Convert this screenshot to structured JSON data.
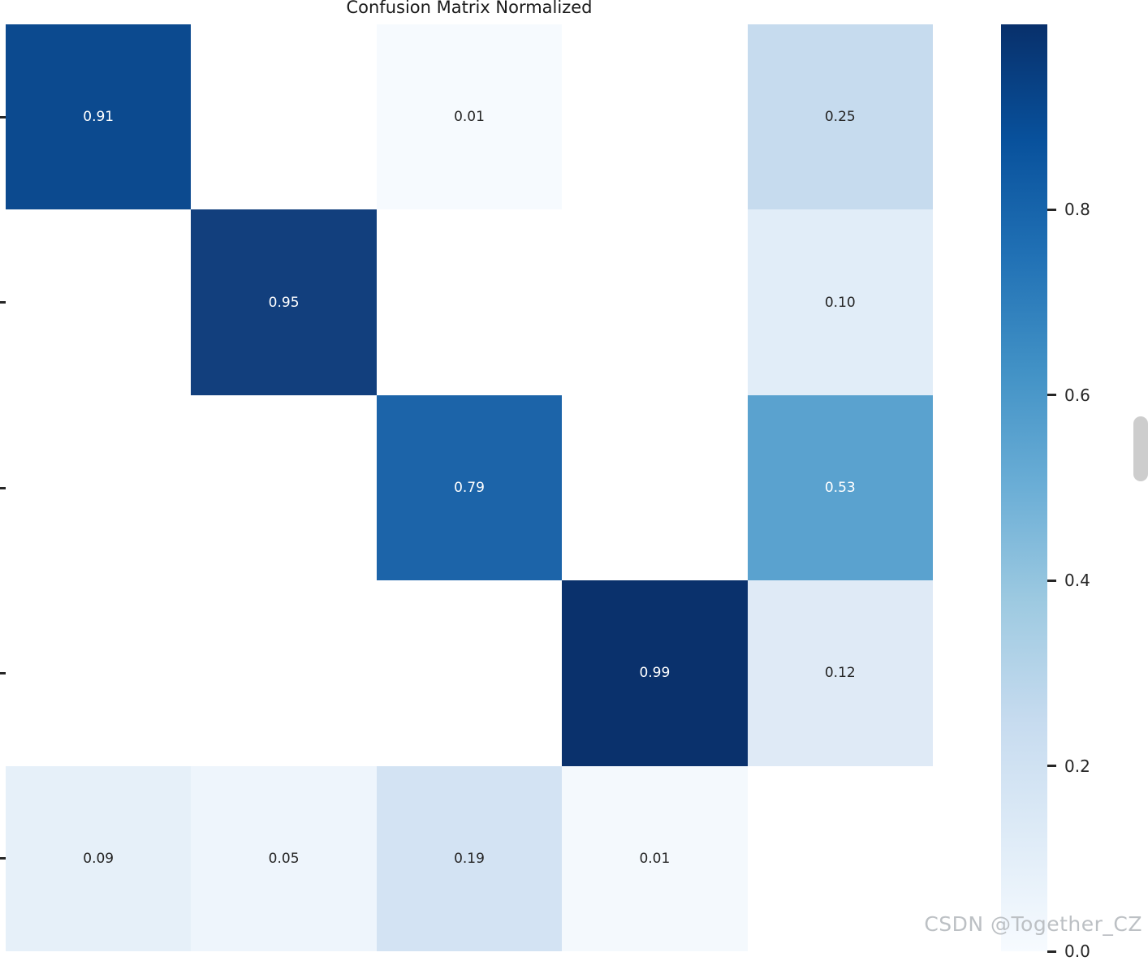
{
  "page": {
    "background": "#ffffff",
    "watermark": {
      "text": "CSDN @Together_CZ",
      "color": "#bcc0c4"
    },
    "scrollbar_color": "#cdcdcd"
  },
  "chart_data": {
    "type": "heatmap",
    "title": "Confusion Matrix Normalized",
    "colormap": "Blues",
    "value_range": [
      0,
      1
    ],
    "rows": 5,
    "cols": 5,
    "matrix": [
      [
        0.91,
        0.0,
        0.01,
        0.0,
        0.25
      ],
      [
        0.0,
        0.95,
        0.0,
        0.0,
        0.1
      ],
      [
        0.0,
        0.0,
        0.79,
        0.0,
        0.53
      ],
      [
        0.0,
        0.0,
        0.0,
        0.99,
        0.12
      ],
      [
        0.09,
        0.05,
        0.19,
        0.01,
        0.0
      ]
    ],
    "cell_labels": [
      [
        "0.91",
        "",
        "0.01",
        "",
        "0.25"
      ],
      [
        "",
        "0.95",
        "",
        "",
        "0.10"
      ],
      [
        "",
        "",
        "0.79",
        "",
        "0.53"
      ],
      [
        "",
        "",
        "",
        "0.99",
        "0.12"
      ],
      [
        "0.09",
        "0.05",
        "0.19",
        "0.01",
        ""
      ]
    ],
    "cell_colors": [
      [
        "#0c4a8f",
        "#ffffff",
        "#f6fafe",
        "#ffffff",
        "#c6dbee"
      ],
      [
        "#ffffff",
        "#123f7d",
        "#ffffff",
        "#ffffff",
        "#e1edf8"
      ],
      [
        "#ffffff",
        "#ffffff",
        "#1c64a9",
        "#ffffff",
        "#5aa2cf"
      ],
      [
        "#ffffff",
        "#ffffff",
        "#ffffff",
        "#0a316c",
        "#dfeaf6"
      ],
      [
        "#e6f0f9",
        "#eef5fc",
        "#d3e3f3",
        "#f4f9fd",
        "#ffffff"
      ]
    ],
    "cell_text_colors": [
      [
        "#ffffff",
        "",
        "#262626",
        "",
        "#262626"
      ],
      [
        "",
        "#ffffff",
        "",
        "",
        "#262626"
      ],
      [
        "",
        "",
        "#ffffff",
        "",
        "#ffffff"
      ],
      [
        "",
        "",
        "",
        "#ffffff",
        "#262626"
      ],
      [
        "#262626",
        "#262626",
        "#262626",
        "#262626",
        ""
      ]
    ],
    "y_axis_tick_count": 5,
    "colorbar": {
      "tick_labels": [
        "0.8",
        "0.6",
        "0.4",
        "0.2",
        "0.0"
      ],
      "tick_values": [
        0.8,
        0.6,
        0.4,
        0.2,
        0.0
      ],
      "gradient_stops_top_to_bottom": [
        "#08306b",
        "#08519c",
        "#2171b5",
        "#4292c6",
        "#6baed6",
        "#9ecae1",
        "#c6dbef",
        "#deebf7",
        "#f7fbff"
      ]
    }
  }
}
